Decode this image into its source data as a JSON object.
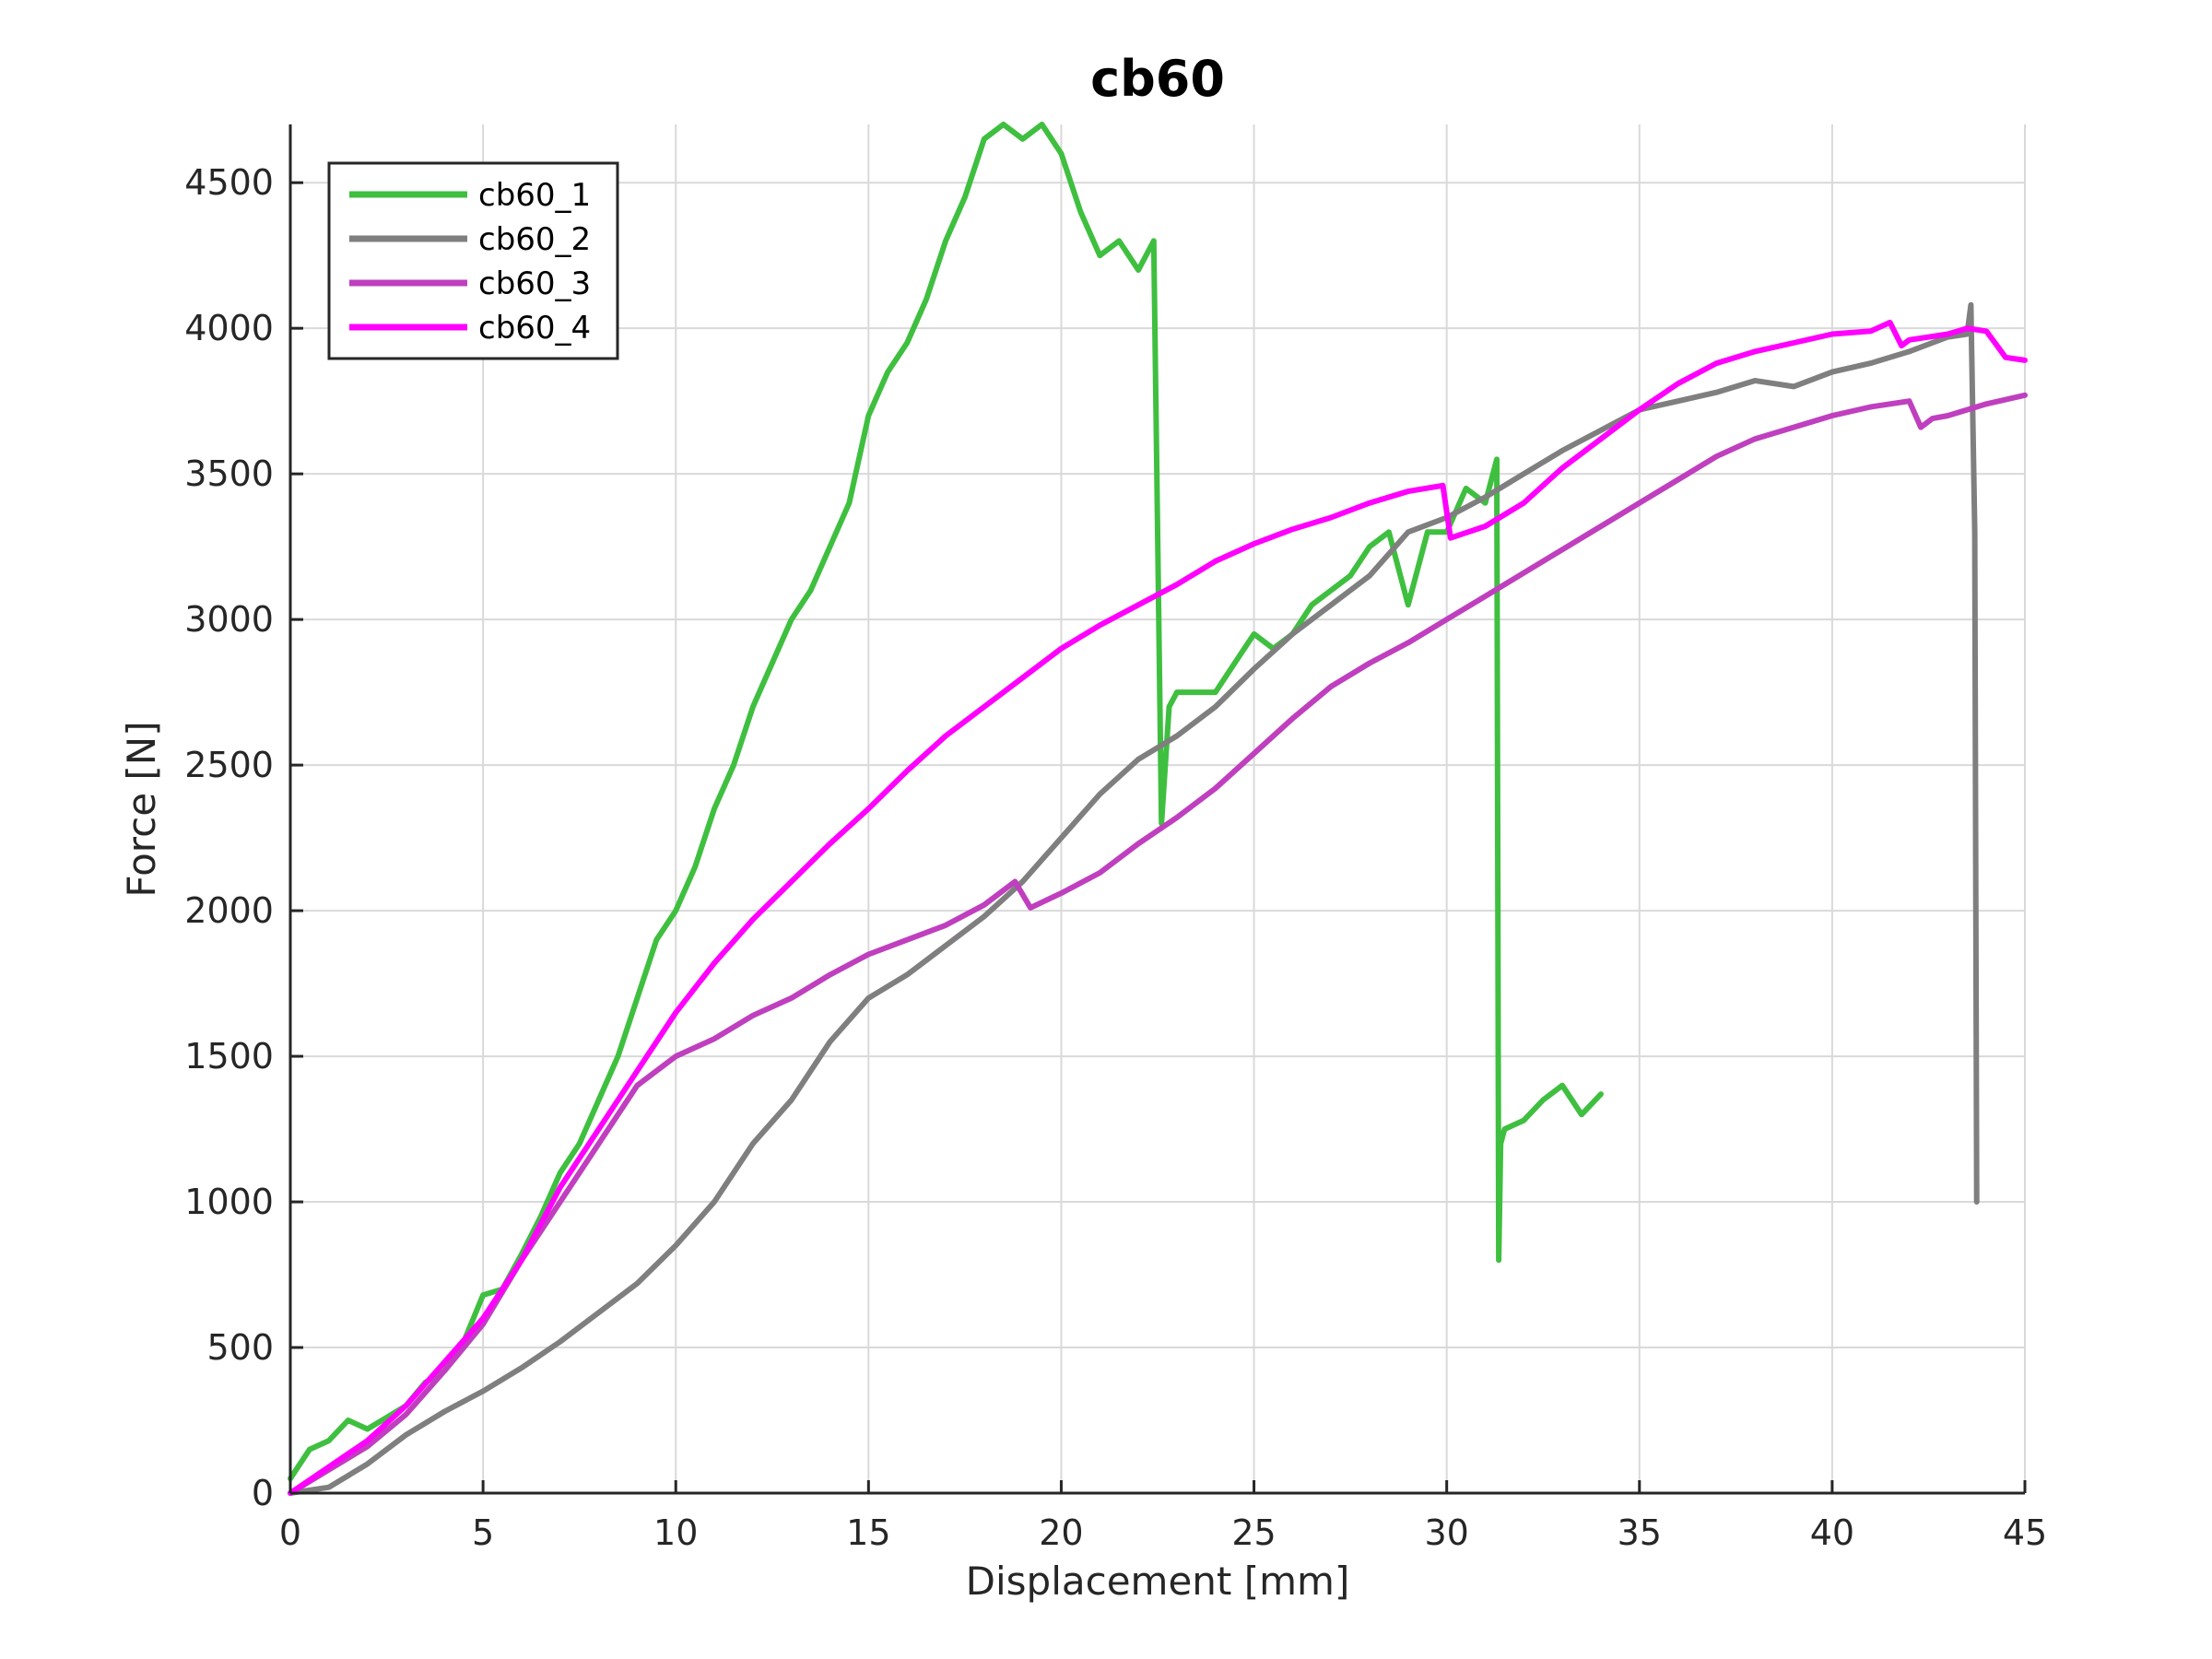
{
  "chart_data": {
    "type": "line",
    "title": "cb60",
    "xlabel": "Displacement [mm]",
    "ylabel": "Force [N]",
    "xlim": [
      0,
      45
    ],
    "ylim": [
      0,
      4700
    ],
    "xticks": [
      0,
      5,
      10,
      15,
      20,
      25,
      30,
      35,
      40,
      45
    ],
    "yticks": [
      0,
      500,
      1000,
      1500,
      2000,
      2500,
      3000,
      3500,
      4000,
      4500
    ],
    "grid": true,
    "legend_position": "top-left",
    "series": [
      {
        "name": "cb60_1",
        "color": "#3fbf3f",
        "x": [
          0,
          0.5,
          1,
          1.5,
          2,
          2.5,
          3,
          3.5,
          4,
          4.5,
          5,
          5.5,
          6,
          6.5,
          7,
          7.5,
          8,
          8.5,
          9,
          9.5,
          10,
          10.5,
          11,
          11.5,
          12,
          12.5,
          13,
          13.5,
          14,
          14.5,
          15,
          15.5,
          16,
          16.5,
          17,
          17.5,
          18,
          18.5,
          19,
          19.5,
          20,
          20.5,
          21,
          21.5,
          22,
          22.4,
          22.6,
          22.8,
          23,
          23.5,
          24,
          24.5,
          25,
          25.5,
          26,
          26.5,
          27,
          27.5,
          28,
          28.5,
          29,
          29.5,
          30,
          30.5,
          31,
          31.3,
          31.35,
          31.4,
          31.5,
          32,
          32.5,
          33,
          33.5,
          34
        ],
        "y": [
          50,
          150,
          180,
          250,
          220,
          260,
          300,
          380,
          420,
          520,
          680,
          700,
          820,
          950,
          1100,
          1200,
          1350,
          1500,
          1700,
          1900,
          2000,
          2150,
          2350,
          2500,
          2700,
          2850,
          3000,
          3100,
          3250,
          3400,
          3700,
          3850,
          3950,
          4100,
          4300,
          4450,
          4650,
          4700,
          4650,
          4700,
          4600,
          4400,
          4250,
          4300,
          4200,
          4300,
          2300,
          2700,
          2750,
          2750,
          2750,
          2850,
          2950,
          2900,
          2950,
          3050,
          3100,
          3150,
          3250,
          3300,
          3050,
          3300,
          3300,
          3450,
          3400,
          3550,
          800,
          1200,
          1250,
          1280,
          1350,
          1400,
          1300,
          1370
        ]
      },
      {
        "name": "cb60_2",
        "color": "#7f7f7f",
        "x": [
          0,
          1,
          2,
          3,
          4,
          5,
          6,
          7,
          8,
          9,
          10,
          11,
          12,
          13,
          14,
          15,
          16,
          17,
          18,
          19,
          20,
          21,
          22,
          23,
          24,
          25,
          26,
          27,
          28,
          29,
          30,
          31,
          32,
          33,
          34,
          35,
          36,
          37,
          38,
          39,
          40,
          41,
          42,
          43,
          43.5,
          43.6,
          43.7,
          43.75
        ],
        "y": [
          0,
          20,
          100,
          200,
          280,
          350,
          430,
          520,
          620,
          720,
          850,
          1000,
          1200,
          1350,
          1550,
          1700,
          1780,
          1880,
          1980,
          2100,
          2250,
          2400,
          2520,
          2600,
          2700,
          2830,
          2950,
          3050,
          3150,
          3300,
          3350,
          3420,
          3500,
          3580,
          3650,
          3720,
          3750,
          3780,
          3820,
          3800,
          3850,
          3880,
          3920,
          3970,
          3980,
          4080,
          3300,
          1000
        ]
      },
      {
        "name": "cb60_3",
        "color": "#bf3fbf",
        "x": [
          0,
          1,
          2,
          3,
          4,
          5,
          6,
          7,
          8,
          9,
          10,
          11,
          12,
          13,
          14,
          15,
          16,
          17,
          18,
          18.8,
          19.2,
          20,
          21,
          22,
          23,
          24,
          25,
          26,
          27,
          28,
          29,
          30,
          31,
          32,
          33,
          34,
          35,
          36,
          37,
          38,
          39,
          40,
          41,
          42,
          42.3,
          42.6,
          43,
          44,
          45
        ],
        "y": [
          0,
          80,
          160,
          270,
          420,
          580,
          800,
          1000,
          1200,
          1400,
          1500,
          1560,
          1640,
          1700,
          1780,
          1850,
          1900,
          1950,
          2020,
          2100,
          2010,
          2060,
          2130,
          2230,
          2320,
          2420,
          2540,
          2660,
          2770,
          2850,
          2920,
          3000,
          3080,
          3160,
          3240,
          3320,
          3400,
          3480,
          3560,
          3620,
          3660,
          3700,
          3730,
          3750,
          3660,
          3690,
          3700,
          3740,
          3770
        ]
      },
      {
        "name": "cb60_4",
        "color": "#ff00ff",
        "x": [
          0,
          1,
          2,
          3,
          4,
          5,
          6,
          7,
          8,
          9,
          10,
          11,
          12,
          13,
          14,
          15,
          16,
          17,
          18,
          19,
          20,
          21,
          22,
          23,
          24,
          25,
          26,
          27,
          28,
          29,
          29.9,
          30.1,
          31,
          32,
          33,
          34,
          35,
          36,
          37,
          38,
          39,
          40,
          41,
          41.5,
          41.8,
          42,
          43,
          43.5,
          44,
          44.5,
          45
        ],
        "y": [
          0,
          90,
          180,
          300,
          450,
          600,
          800,
          1050,
          1250,
          1450,
          1650,
          1820,
          1970,
          2100,
          2230,
          2350,
          2480,
          2600,
          2700,
          2800,
          2900,
          2980,
          3050,
          3120,
          3200,
          3260,
          3310,
          3350,
          3400,
          3440,
          3460,
          3280,
          3320,
          3400,
          3520,
          3620,
          3720,
          3810,
          3880,
          3920,
          3950,
          3980,
          3990,
          4020,
          3940,
          3960,
          3980,
          4000,
          3990,
          3900,
          3890
        ]
      }
    ]
  }
}
